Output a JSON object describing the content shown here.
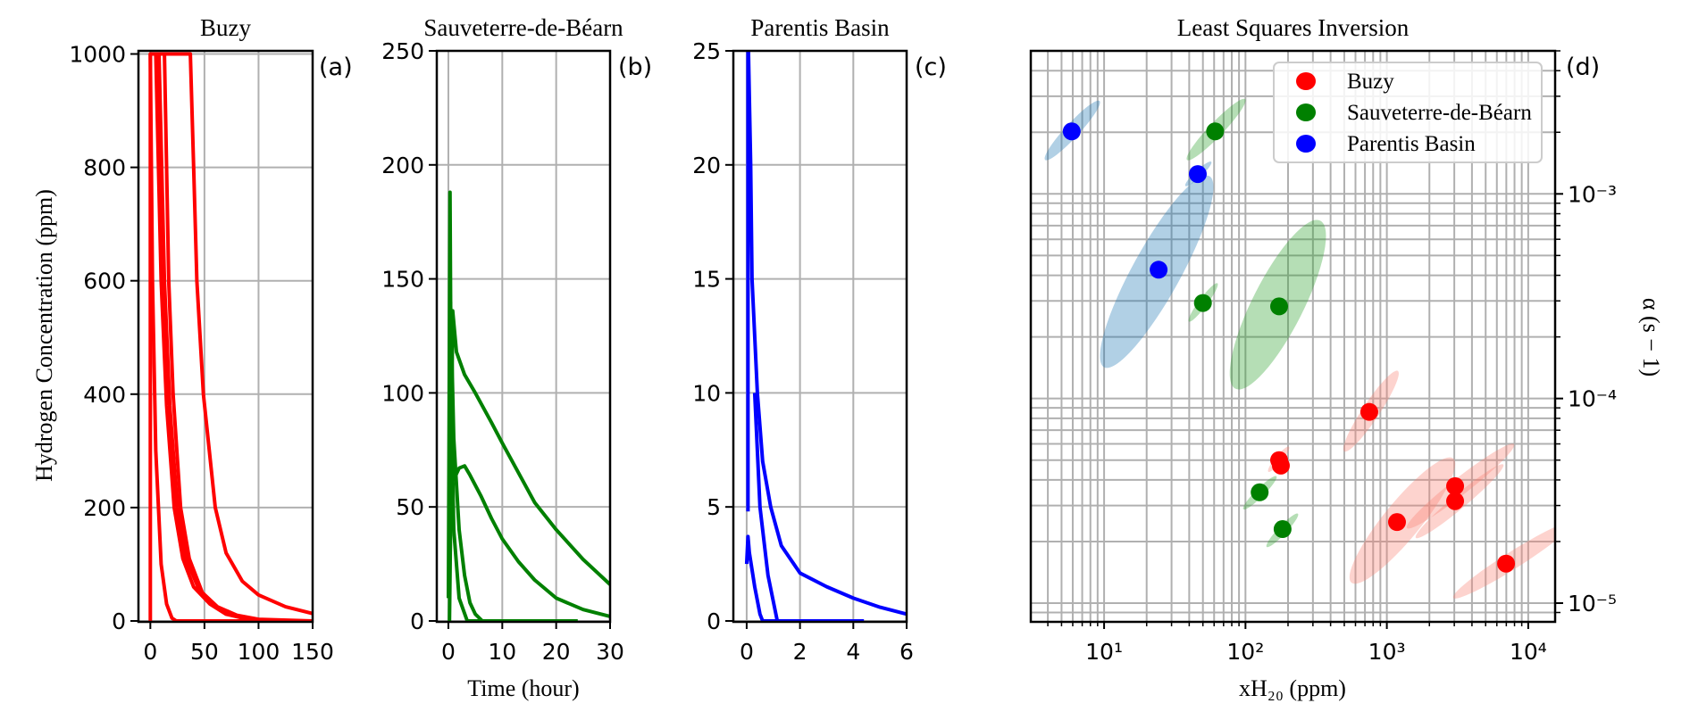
{
  "figure": {
    "ylabel_left": "Hydrogen Concentration (ppm)",
    "xlabel_time": "Time (hour)"
  },
  "chart_data": [
    {
      "type": "line",
      "title": "Buzy",
      "panel_label": "(a)",
      "xlim": [
        -11,
        150
      ],
      "ylim": [
        -1.6,
        1005.5
      ],
      "xticks": [
        0,
        50,
        100,
        150
      ],
      "xtick_labels": [
        "0",
        "50",
        "100",
        "150"
      ],
      "yticks": [
        0,
        200,
        400,
        600,
        800,
        1000
      ],
      "ytick_labels": [
        "0",
        "200",
        "400",
        "600",
        "800",
        "1000"
      ],
      "grid": true,
      "color": "#ff0000",
      "series": [
        [
          [
            0,
            0
          ],
          [
            0,
            1000
          ],
          [
            37,
            1000
          ],
          [
            40,
            800
          ],
          [
            43,
            600
          ],
          [
            49,
            400
          ],
          [
            60,
            200
          ],
          [
            70,
            120
          ],
          [
            85,
            70
          ],
          [
            100,
            46
          ],
          [
            125,
            25
          ],
          [
            150,
            13
          ]
        ],
        [
          [
            0,
            1000
          ],
          [
            2,
            600
          ],
          [
            5,
            300
          ],
          [
            10,
            100
          ],
          [
            15,
            30
          ],
          [
            20,
            5
          ],
          [
            24,
            0
          ],
          [
            150,
            0
          ]
        ],
        [
          [
            5,
            1000
          ],
          [
            10,
            600
          ],
          [
            15,
            380
          ],
          [
            22,
            200
          ],
          [
            30,
            110
          ],
          [
            40,
            60
          ],
          [
            55,
            30
          ],
          [
            70,
            12
          ],
          [
            90,
            3
          ],
          [
            120,
            0
          ]
        ],
        [
          [
            8,
            1000
          ],
          [
            13,
            600
          ],
          [
            18,
            380
          ],
          [
            25,
            200
          ],
          [
            33,
            110
          ],
          [
            45,
            55
          ],
          [
            60,
            25
          ],
          [
            80,
            8
          ],
          [
            100,
            2
          ],
          [
            130,
            0
          ]
        ],
        [
          [
            13,
            1000
          ],
          [
            17,
            600
          ],
          [
            21,
            400
          ],
          [
            28,
            200
          ],
          [
            36,
            110
          ],
          [
            48,
            50
          ],
          [
            62,
            25
          ],
          [
            80,
            10
          ],
          [
            100,
            3
          ],
          [
            150,
            0
          ]
        ]
      ]
    },
    {
      "type": "line",
      "title": "Sauveterre-de-Béarn",
      "panel_label": "(b)",
      "xlim": [
        -2.15,
        30
      ],
      "ylim": [
        -0.4,
        250
      ],
      "xticks": [
        0,
        10,
        20,
        30
      ],
      "xtick_labels": [
        "0",
        "10",
        "20",
        "30"
      ],
      "yticks": [
        0,
        50,
        100,
        150,
        200,
        250
      ],
      "ytick_labels": [
        "0",
        "50",
        "100",
        "150",
        "200",
        "250"
      ],
      "grid": true,
      "color": "#008000",
      "series": [
        [
          [
            0,
            10
          ],
          [
            0.3,
            188
          ],
          [
            0.5,
            100
          ],
          [
            1,
            40
          ],
          [
            2,
            10
          ],
          [
            3.5,
            0
          ],
          [
            24,
            0
          ]
        ],
        [
          [
            0.2,
            0
          ],
          [
            0.5,
            60
          ],
          [
            0.8,
            136
          ],
          [
            1.5,
            118
          ],
          [
            3,
            108
          ],
          [
            5,
            100
          ],
          [
            8,
            87
          ],
          [
            10,
            78
          ],
          [
            13,
            65
          ],
          [
            16,
            52
          ],
          [
            20,
            40
          ],
          [
            25,
            27
          ],
          [
            30,
            16
          ]
        ],
        [
          [
            0.5,
            62
          ],
          [
            1,
            62
          ],
          [
            2,
            67
          ],
          [
            3,
            68
          ],
          [
            4,
            64
          ],
          [
            6,
            55
          ],
          [
            8,
            45
          ],
          [
            10,
            36
          ],
          [
            13,
            26
          ],
          [
            16,
            18
          ],
          [
            20,
            10
          ],
          [
            25,
            5
          ],
          [
            30,
            2
          ]
        ],
        [
          [
            0.4,
            140
          ],
          [
            1,
            80
          ],
          [
            2,
            40
          ],
          [
            3,
            20
          ],
          [
            4,
            8
          ],
          [
            5,
            3
          ],
          [
            6.3,
            0
          ]
        ]
      ]
    },
    {
      "type": "line",
      "title": "Parentis Basin",
      "panel_label": "(c)",
      "xlim": [
        -0.5,
        6
      ],
      "ylim": [
        -0.04,
        25
      ],
      "xticks": [
        0,
        2,
        4,
        6
      ],
      "xtick_labels": [
        "0",
        "2",
        "4",
        "6"
      ],
      "yticks": [
        0,
        5,
        10,
        15,
        20,
        25
      ],
      "ytick_labels": [
        "0",
        "5",
        "10",
        "15",
        "20",
        "25"
      ],
      "grid": true,
      "color": "#0000ff",
      "series": [
        [
          [
            0.05,
            4.8
          ],
          [
            0.05,
            26
          ],
          [
            0.15,
            20
          ],
          [
            0.2,
            15
          ],
          [
            0.4,
            10
          ],
          [
            0.6,
            7
          ],
          [
            0.9,
            5
          ],
          [
            1.3,
            3.3
          ],
          [
            2,
            2.1
          ],
          [
            3,
            1.5
          ],
          [
            4,
            1.0
          ],
          [
            5,
            0.6
          ],
          [
            6,
            0.3
          ]
        ],
        [
          [
            0,
            2.5
          ],
          [
            0.05,
            3.7
          ],
          [
            0.1,
            3
          ],
          [
            0.3,
            1.5
          ],
          [
            0.5,
            0.3
          ],
          [
            0.6,
            0
          ],
          [
            4.4,
            0
          ]
        ],
        [
          [
            0.3,
            10
          ],
          [
            0.5,
            5
          ],
          [
            0.8,
            2
          ],
          [
            1.15,
            0
          ]
        ]
      ]
    },
    {
      "type": "scatter",
      "title": "Least Squares Inversion",
      "panel_label": "(d)",
      "xlabel": "xH₂₀ (ppm)",
      "ylabel": "α (s − 1)",
      "xscale": "log",
      "yscale": "log",
      "xlim": [
        3.03,
        15500
      ],
      "ylim": [
        8.1e-06,
        0.005
      ],
      "xticks": [
        10,
        100,
        1000,
        10000
      ],
      "xtick_labels": [
        "10¹",
        "10²",
        "10³",
        "10⁴"
      ],
      "yticks": [
        1e-05,
        0.0001,
        0.001
      ],
      "ytick_labels": [
        "10⁻⁵",
        "10⁻⁴",
        "10⁻³"
      ],
      "grid": "major+minor",
      "legend": {
        "placement": "top-right",
        "entries": [
          "Buzy",
          "Sauveterre-de-Béarn",
          "Parentis Basin"
        ]
      },
      "series": [
        {
          "name": "Buzy",
          "color": "#ff0000",
          "ellipse_color": "#fa8072",
          "points": [
            [
              751,
              8.6e-05
            ],
            [
              173,
              5e-05
            ],
            [
              178,
              4.7e-05
            ],
            [
              1180,
              2.49e-05
            ],
            [
              3040,
              3.73e-05
            ],
            [
              3040,
              3.15e-05
            ],
            [
              6970,
              1.56e-05
            ]
          ],
          "uncertainty_ellipses_log10": [
            {
              "a": [
                2.699,
                -4.258
              ],
              "b": [
                3.078,
                -3.865
              ],
              "minor": 0.06
            },
            {
              "a": [
                2.162,
                -4.358
              ],
              "b": [
                2.308,
                -4.236
              ],
              "minor": 0.025
            },
            {
              "a": [
                2.75,
                -4.9
              ],
              "b": [
                3.47,
                -4.293
              ],
              "minor": 0.13
            },
            {
              "a": [
                3.142,
                -4.633
              ],
              "b": [
                3.9,
                -4.223
              ],
              "minor": 0.06
            },
            {
              "a": [
                3.205,
                -4.681
              ],
              "b": [
                3.824,
                -4.323
              ],
              "minor": 0.05
            },
            {
              "a": [
                3.47,
                -4.974
              ],
              "b": [
                4.31,
                -4.607
              ],
              "minor": 0.06
            }
          ]
        },
        {
          "name": "Sauveterre-de-Béarn",
          "color": "#008000",
          "ellipse_color": "#2ca02c",
          "points": [
            [
              61,
              0.00202
            ],
            [
              50,
              0.000293
            ],
            [
              173,
              0.000282
            ],
            [
              126,
              3.48e-05
            ],
            [
              183,
              2.3e-05
            ]
          ],
          "uncertainty_ellipses_log10": [
            {
              "a": [
                1.587,
                -2.834
              ],
              "b": [
                1.998,
                -2.537
              ],
              "minor": 0.05
            },
            {
              "a": [
                1.6,
                -3.624
              ],
              "b": [
                1.802,
                -3.437
              ],
              "minor": 0.03
            },
            {
              "a": [
                1.929,
                -3.952
              ],
              "b": [
                2.529,
                -3.131
              ],
              "minor": 0.18
            },
            {
              "a": [
                1.985,
                -4.541
              ],
              "b": [
                2.219,
                -4.38
              ],
              "minor": 0.03
            },
            {
              "a": [
                2.15,
                -4.725
              ],
              "b": [
                2.371,
                -4.563
              ],
              "minor": 0.03
            }
          ]
        },
        {
          "name": "Parentis Basin",
          "color": "#0000ff",
          "ellipse_color": "#1f77b4",
          "points": [
            [
              5.9,
              0.00202
            ],
            [
              46,
              0.00125
            ],
            [
              24.3,
              0.000426
            ]
          ],
          "uncertainty_ellipses_log10": [
            {
              "a": [
                0.583,
                -2.834
              ],
              "b": [
                0.968,
                -2.546
              ],
              "minor": 0.05
            },
            {
              "a": [
                1.575,
                -2.961
              ],
              "b": [
                1.758,
                -2.843
              ],
              "minor": 0.025
            },
            {
              "a": [
                1.0,
                -3.847
              ],
              "b": [
                1.745,
                -2.913
              ],
              "minor": 0.17
            }
          ]
        }
      ]
    }
  ]
}
